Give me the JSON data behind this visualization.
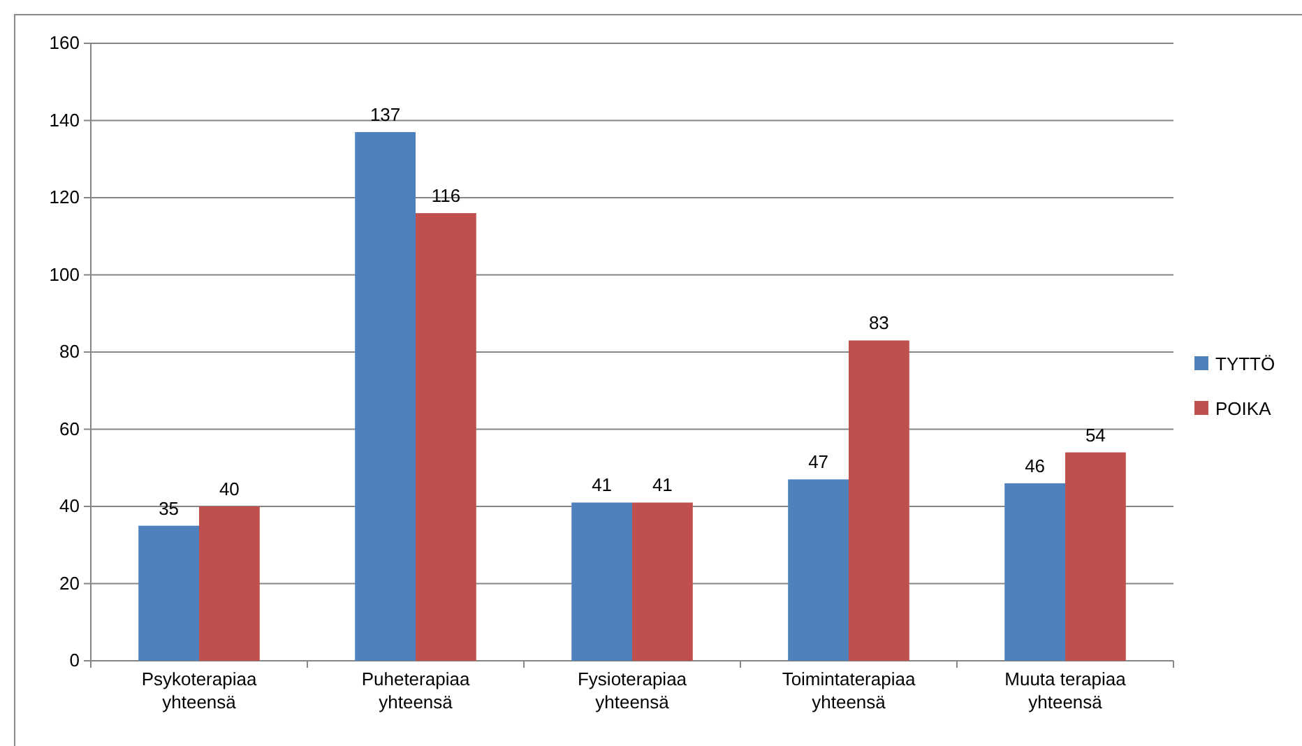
{
  "chart_data": {
    "type": "bar",
    "categories": [
      "Psykoterapiaa yhteensä",
      "Puheterapiaa yhteensä",
      "Fysioterapiaa yhteensä",
      "Toimintaterapiaa yhteensä",
      "Muuta terapiaa yhteensä"
    ],
    "series": [
      {
        "name": "TYTTÖ",
        "color": "#4f81bd",
        "values": [
          35,
          137,
          41,
          47,
          46
        ]
      },
      {
        "name": "POIKA",
        "color": "#c0504d",
        "values": [
          40,
          116,
          41,
          83,
          54
        ]
      }
    ],
    "ylim": [
      0,
      160
    ],
    "yticks": [
      0,
      20,
      40,
      60,
      80,
      100,
      120,
      140,
      160
    ],
    "grid": "y",
    "legend": "right",
    "data_labels": true
  }
}
